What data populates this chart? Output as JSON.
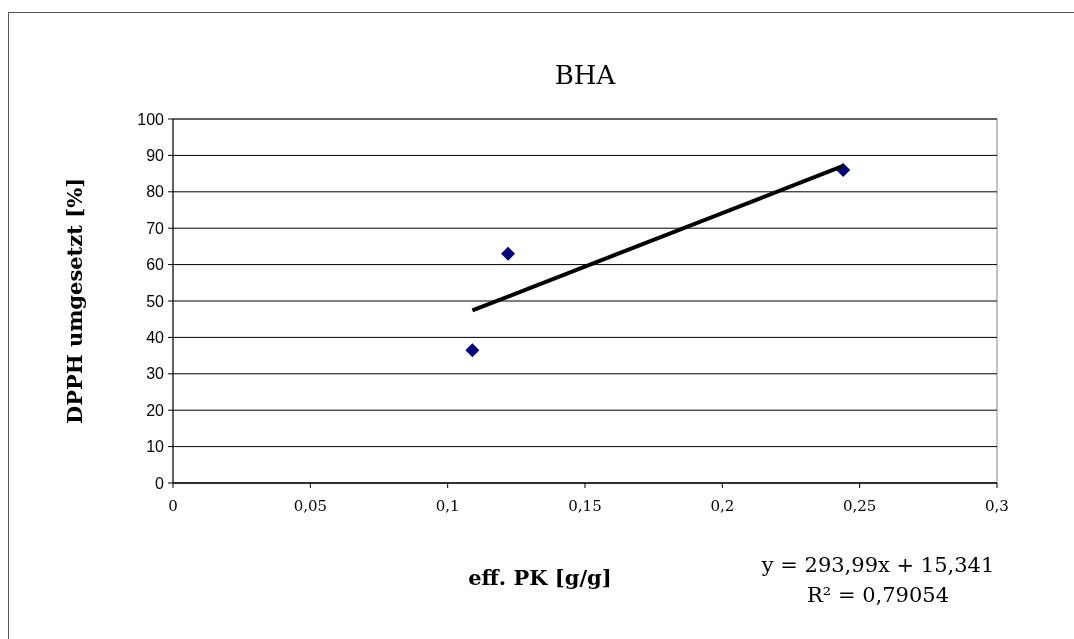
{
  "chart_data": {
    "type": "scatter",
    "title": "BHA",
    "xlabel": "eff. PK [g/g]",
    "ylabel": "DPPH umgesetzt [%]",
    "xlim": [
      0,
      0.3
    ],
    "xticks": [
      0,
      {
        "value": 0.05,
        "label": "0,05"
      },
      {
        "value": 0.1,
        "label": "0,1"
      },
      {
        "value": 0.15,
        "label": "0,15"
      },
      {
        "value": 0.2,
        "label": "0,2"
      },
      {
        "value": 0.25,
        "label": "0,25"
      },
      {
        "value": 0.3,
        "label": "0,3"
      }
    ],
    "ylim": [
      0,
      100
    ],
    "yticks": [
      0,
      10,
      20,
      30,
      40,
      50,
      60,
      70,
      80,
      90,
      100
    ],
    "grid": "y",
    "marker": "diamond",
    "series": [
      {
        "color": "#000080",
        "x": [
          0.109,
          0.122,
          0.244
        ],
        "values": [
          36.5,
          63,
          86
        ]
      },
      {
        "type": "line",
        "marker": "none",
        "color": "#000000",
        "x": [
          0.109,
          0.244
        ],
        "values": [
          47.4,
          87.1
        ]
      }
    ],
    "annotations": [
      "y = 293,99x + 15,341",
      "R² = 0,79054"
    ]
  }
}
